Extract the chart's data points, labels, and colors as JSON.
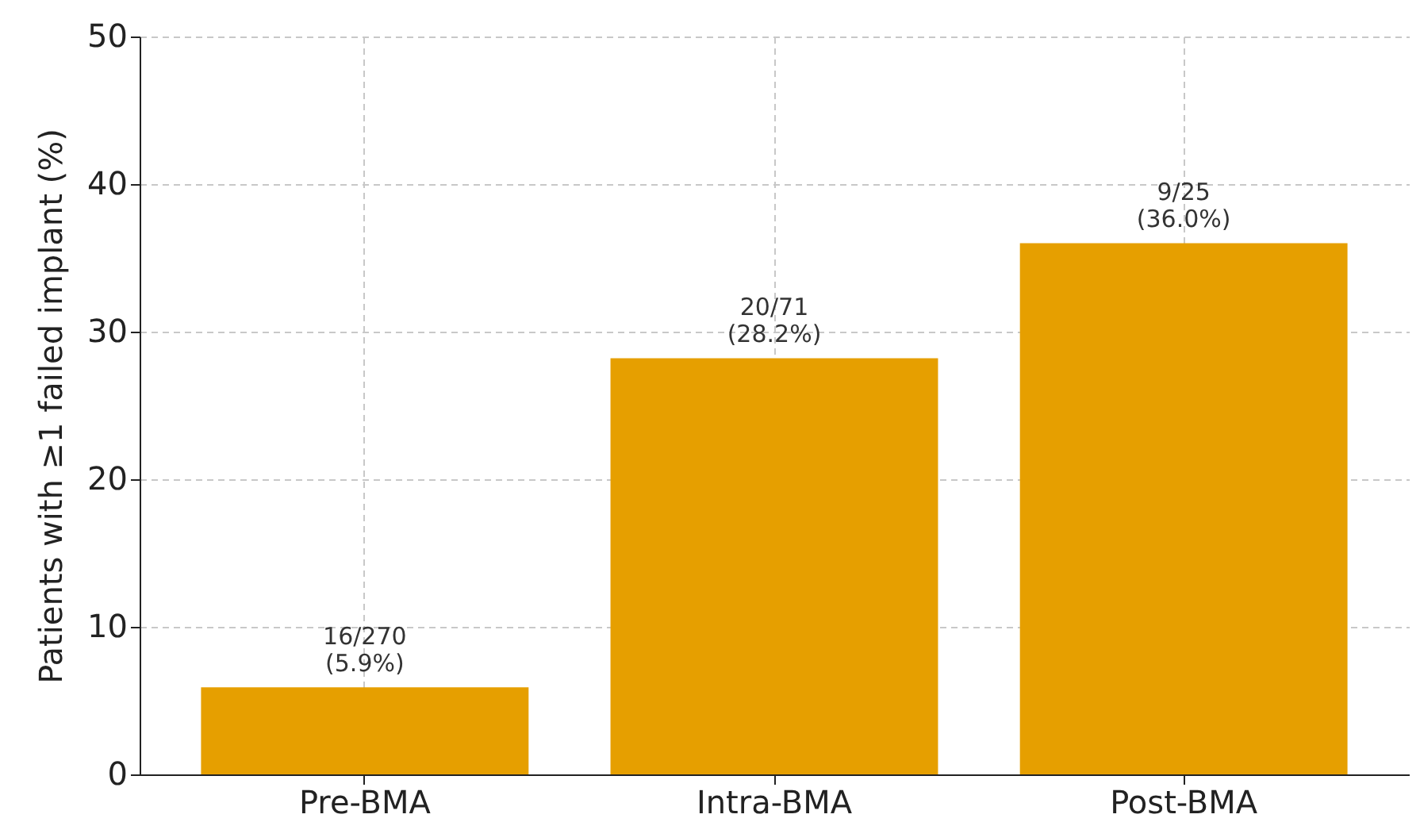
{
  "chart_data": {
    "type": "bar",
    "ylabel": "Patients with ≥1 failed implant (%)",
    "categories": [
      "Pre-BMA",
      "Intra-BMA",
      "Post-BMA"
    ],
    "values": [
      5.9,
      28.2,
      36.0
    ],
    "value_labels": [
      "16/270\n(5.9%)",
      "20/71\n(28.2%)",
      "9/25\n(36.0%)"
    ],
    "color": "#e69f00",
    "ylim": [
      0,
      50
    ],
    "yticks": [
      0,
      10,
      20,
      30,
      40,
      50
    ],
    "grid": true
  }
}
